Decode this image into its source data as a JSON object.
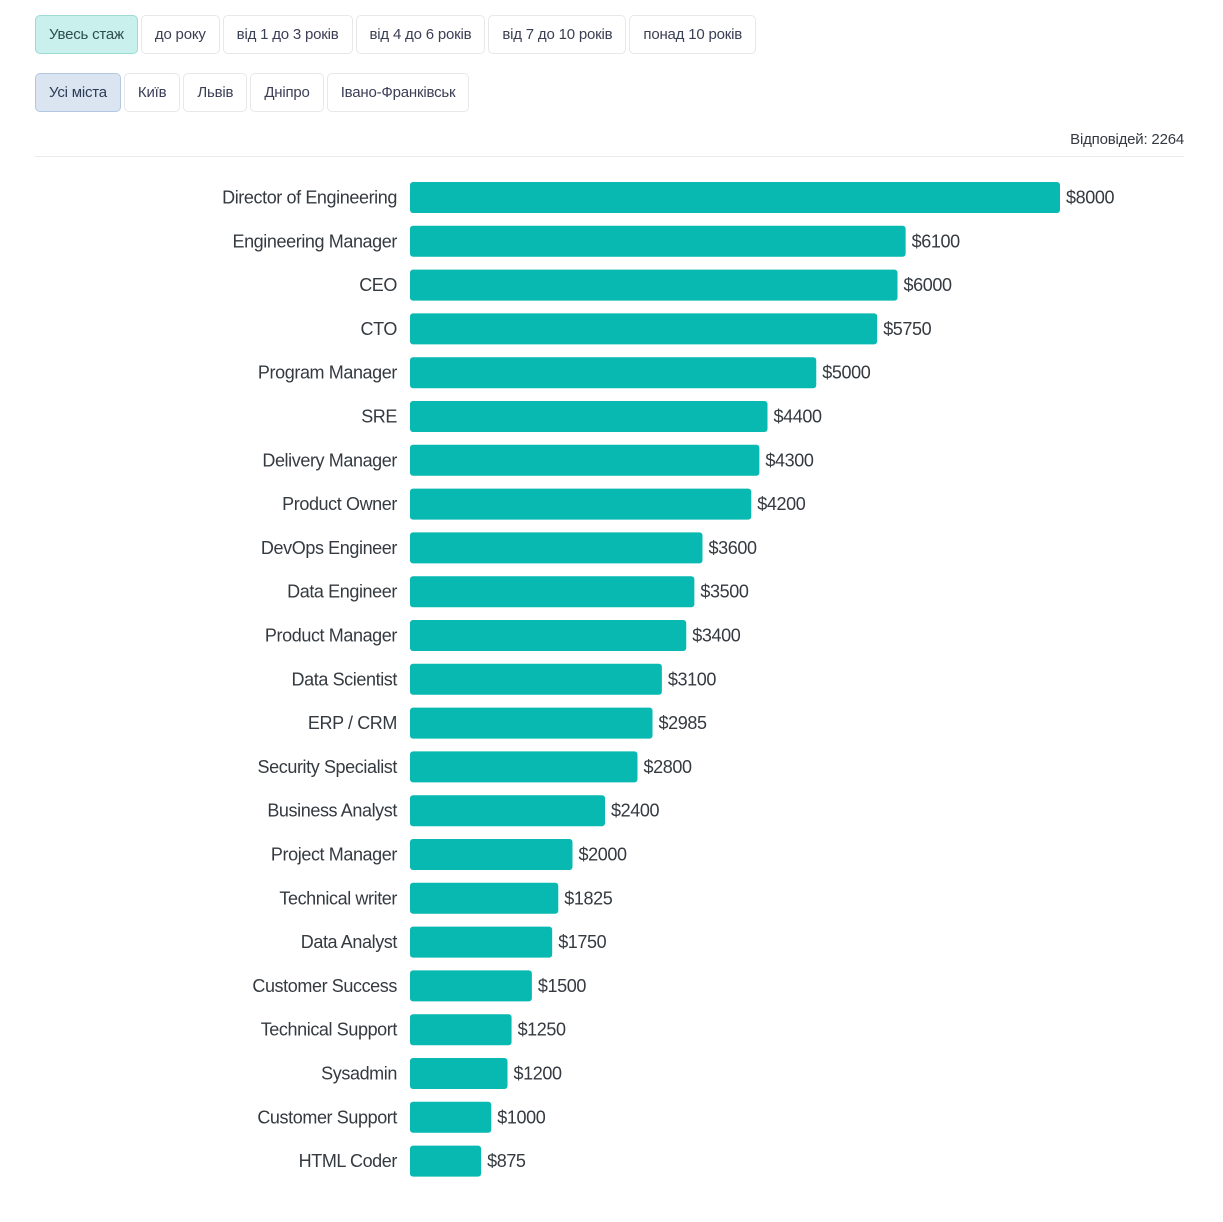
{
  "filters": {
    "experience": [
      "Увесь стаж",
      "до року",
      "від 1 до 3 років",
      "від 4 до 6 років",
      "від 7 до 10 років",
      "понад 10 років"
    ],
    "experience_selected": 0,
    "cities": [
      "Усі міста",
      "Київ",
      "Львів",
      "Дніпро",
      "Івано-Франківськ"
    ],
    "cities_selected": 0
  },
  "responses": "Відповідей: 2264",
  "chart_data": {
    "type": "bar",
    "orientation": "horizontal",
    "bar_color": "#07b9b0",
    "value_prefix": "$",
    "categories": [
      "Director of Engineering",
      "Engineering Manager",
      "CEO",
      "CTO",
      "Program Manager",
      "SRE",
      "Delivery Manager",
      "Product Owner",
      "DevOps Engineer",
      "Data Engineer",
      "Product Manager",
      "Data Scientist",
      "ERP / CRM",
      "Security Specialist",
      "Business Analyst",
      "Project Manager",
      "Technical writer",
      "Data Analyst",
      "Customer Success",
      "Technical Support",
      "Sysadmin",
      "Customer Support",
      "HTML Coder"
    ],
    "values": [
      8000,
      6100,
      6000,
      5750,
      5000,
      4400,
      4300,
      4200,
      3600,
      3500,
      3400,
      3100,
      2985,
      2800,
      2400,
      2000,
      1825,
      1750,
      1500,
      1250,
      1200,
      1000,
      875
    ],
    "labels": [
      "$8000",
      "$6100",
      "$6000",
      "$5750",
      "$5000",
      "$4400",
      "$4300",
      "$4200",
      "$3600",
      "$3500",
      "$3400",
      "$3100",
      "$2985",
      "$2800",
      "$2400",
      "$2000",
      "$1825",
      "$1750",
      "$1500",
      "$1250",
      "$1200",
      "$1000",
      "$875"
    ]
  }
}
